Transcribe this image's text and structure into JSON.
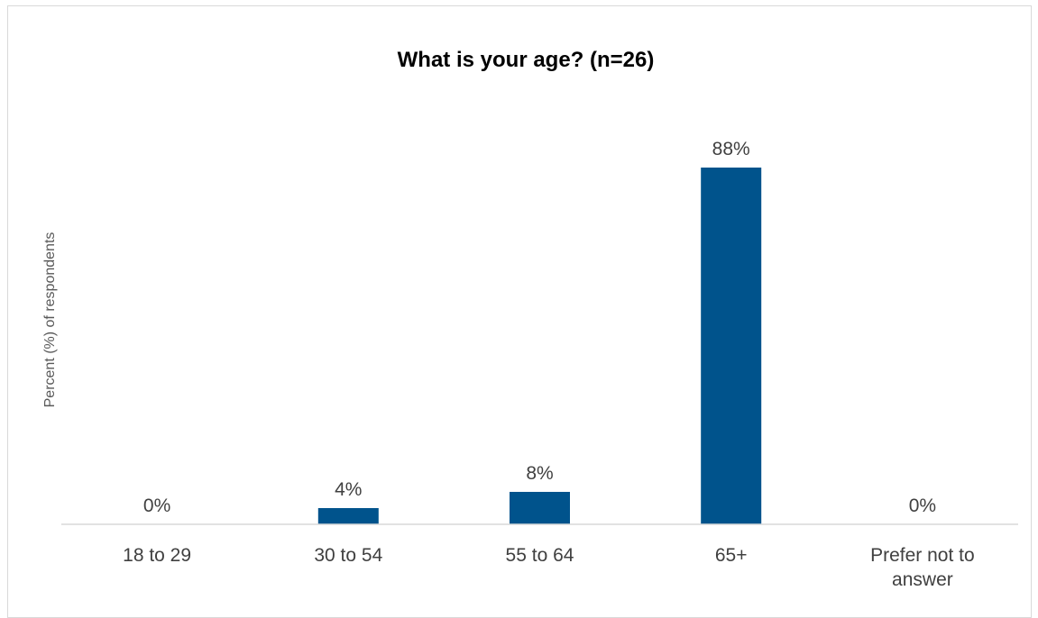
{
  "chart_data": {
    "type": "bar",
    "title": "What is your age? (n=26)",
    "xlabel": "",
    "ylabel": "Percent (%) of respondents",
    "categories": [
      [
        "18 to 29"
      ],
      [
        "30 to 54"
      ],
      [
        "55 to 64"
      ],
      [
        "65+"
      ],
      [
        "Prefer not to",
        "answer"
      ]
    ],
    "values": [
      0,
      4,
      8,
      88,
      0
    ],
    "value_labels": [
      "0%",
      "4%",
      "8%",
      "88%",
      "0%"
    ],
    "ylim": [
      0,
      100
    ],
    "grid": false,
    "legend": "none",
    "bar_color": "#00538c",
    "axis_color": "#d9d9d9"
  }
}
